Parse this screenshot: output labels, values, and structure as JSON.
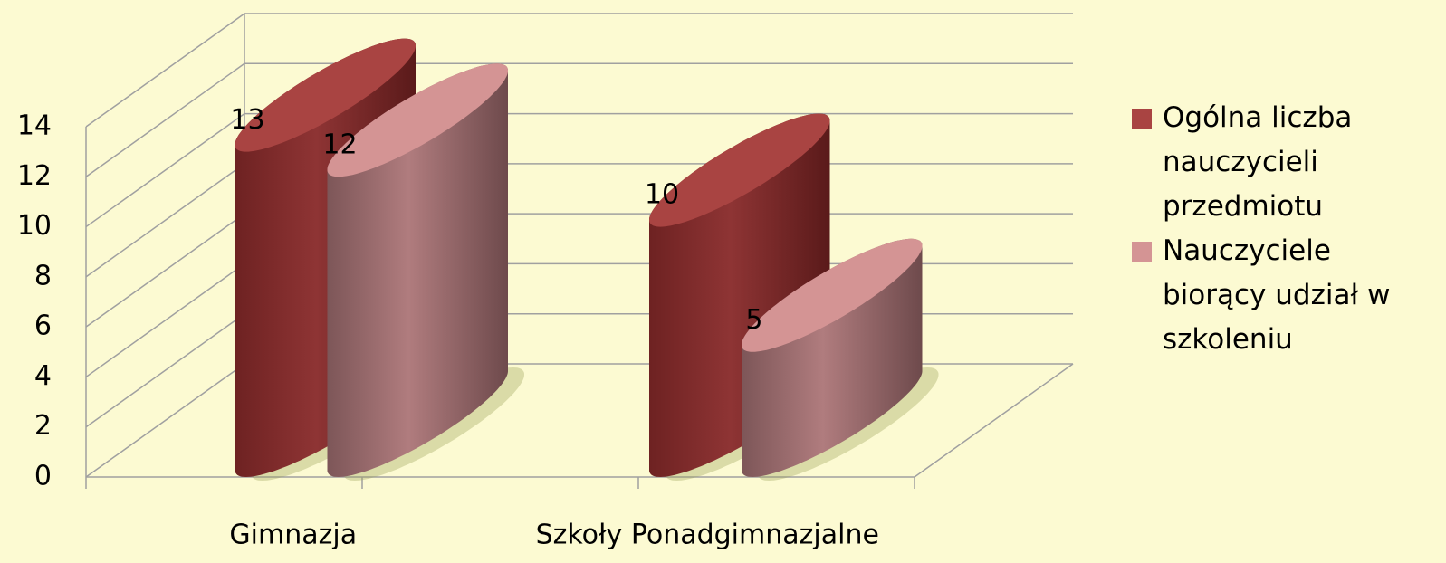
{
  "chart_data": {
    "type": "bar3d_cylinder",
    "categories": [
      "Gimnazja",
      "Szkoły Ponadgimnazjalne"
    ],
    "series": [
      {
        "name": "Ogólna liczba nauczycieli przedmiotu",
        "color": "#a94442",
        "values": [
          13,
          10
        ]
      },
      {
        "name": "Nauczyciele biorący udział w szkoleniu",
        "color": "#d49494",
        "values": [
          12,
          5
        ]
      }
    ],
    "ylim": [
      0,
      14
    ],
    "yticks": [
      0,
      2,
      4,
      6,
      8,
      10,
      12,
      14
    ],
    "grid": true,
    "legend": "right"
  }
}
